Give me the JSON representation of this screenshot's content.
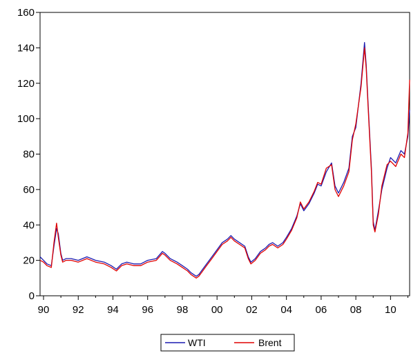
{
  "chart_data": {
    "type": "line",
    "title": "",
    "xlabel": "",
    "ylabel": "",
    "xlim": [
      1989.8,
      2011.1
    ],
    "ylim": [
      0,
      160
    ],
    "yticks": [
      0,
      20,
      40,
      60,
      80,
      100,
      120,
      140,
      160
    ],
    "xticks": [
      {
        "value": 1990,
        "label": "90"
      },
      {
        "value": 1992,
        "label": "92"
      },
      {
        "value": 1994,
        "label": "94"
      },
      {
        "value": 1996,
        "label": "96"
      },
      {
        "value": 1998,
        "label": "98"
      },
      {
        "value": 2000,
        "label": "00"
      },
      {
        "value": 2002,
        "label": "02"
      },
      {
        "value": 2004,
        "label": "04"
      },
      {
        "value": 2006,
        "label": "06"
      },
      {
        "value": 2008,
        "label": "08"
      },
      {
        "value": 2010,
        "label": "10"
      }
    ],
    "grid": false,
    "legend_position": "bottom-center",
    "x": [
      1989.8,
      1990.0,
      1990.2,
      1990.45,
      1990.6,
      1990.75,
      1990.85,
      1991.0,
      1991.1,
      1991.3,
      1991.6,
      1992.0,
      1992.5,
      1993.0,
      1993.5,
      1993.9,
      1994.2,
      1994.5,
      1994.8,
      1995.2,
      1995.6,
      1996.0,
      1996.5,
      1996.85,
      1997.0,
      1997.3,
      1997.7,
      1998.0,
      1998.3,
      1998.5,
      1998.8,
      1998.95,
      1999.1,
      1999.4,
      1999.7,
      2000.0,
      2000.3,
      2000.6,
      2000.8,
      2001.0,
      2001.3,
      2001.6,
      2001.8,
      2001.95,
      2002.2,
      2002.5,
      2002.8,
      2003.0,
      2003.2,
      2003.5,
      2003.8,
      2004.0,
      2004.3,
      2004.6,
      2004.8,
      2005.0,
      2005.3,
      2005.6,
      2005.8,
      2006.0,
      2006.3,
      2006.6,
      2006.8,
      2007.0,
      2007.3,
      2007.6,
      2007.8,
      2008.0,
      2008.3,
      2008.5,
      2008.6,
      2008.7,
      2008.9,
      2009.0,
      2009.1,
      2009.3,
      2009.5,
      2009.8,
      2010.0,
      2010.3,
      2010.6,
      2010.8,
      2011.0,
      2011.1
    ],
    "series": [
      {
        "name": "WTI",
        "color": "#1a1ab0",
        "values": [
          22,
          20,
          18,
          17,
          28,
          38,
          35,
          24,
          20,
          21,
          21,
          20,
          22,
          20,
          19,
          17,
          15,
          18,
          19,
          18,
          18,
          20,
          21,
          25,
          24,
          21,
          19,
          17,
          15,
          13,
          11,
          12,
          14,
          18,
          22,
          26,
          30,
          32,
          34,
          32,
          30,
          28,
          22,
          19,
          21,
          25,
          27,
          29,
          30,
          28,
          30,
          33,
          38,
          45,
          52,
          48,
          52,
          58,
          63,
          62,
          70,
          75,
          62,
          58,
          64,
          72,
          90,
          95,
          120,
          143,
          130,
          110,
          72,
          42,
          37,
          48,
          60,
          72,
          78,
          75,
          82,
          80,
          90,
          105
        ]
      },
      {
        "name": "Brent",
        "color": "#e00000",
        "values": [
          20,
          19,
          17,
          16,
          30,
          41,
          33,
          23,
          19,
          20,
          20,
          19,
          21,
          19,
          18,
          16,
          14,
          17,
          18,
          17,
          17,
          19,
          20,
          24,
          23,
          20,
          18,
          16,
          14,
          12,
          10,
          11,
          13,
          17,
          21,
          25,
          29,
          31,
          33,
          31,
          29,
          27,
          21,
          18,
          20,
          24,
          26,
          28,
          29,
          27,
          29,
          32,
          37,
          44,
          53,
          49,
          53,
          59,
          64,
          63,
          72,
          74,
          60,
          56,
          62,
          70,
          88,
          97,
          118,
          140,
          128,
          108,
          70,
          40,
          36,
          46,
          62,
          74,
          76,
          73,
          80,
          78,
          92,
          122
        ]
      }
    ]
  }
}
